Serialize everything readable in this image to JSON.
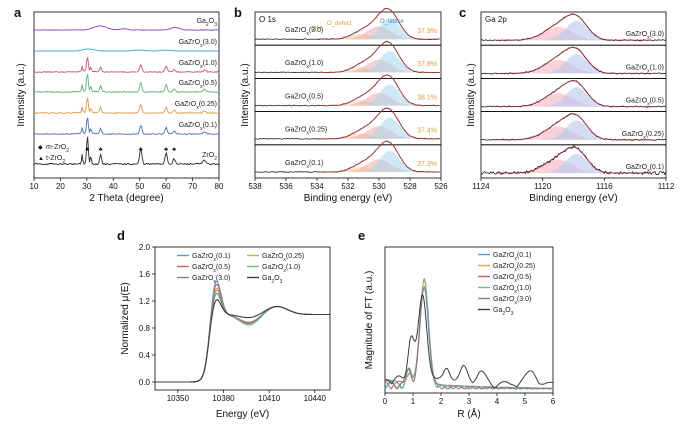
{
  "figure": {
    "panel_letters": [
      "a",
      "b",
      "c",
      "d",
      "e"
    ]
  },
  "chart_data": [
    {
      "panel": "a",
      "type": "line",
      "title": "",
      "xlabel": "2 Theta (degree)",
      "ylabel": "Intensity (a.u.)",
      "xlim": [
        10,
        80
      ],
      "xticks": [
        "10",
        "20",
        "30",
        "40",
        "50",
        "60",
        "70",
        "80"
      ],
      "series": [
        {
          "name": "Ga2O3",
          "color": "#8a3fc0"
        },
        {
          "name": "GaZrOx(3.0)",
          "color": "#35a8c8"
        },
        {
          "name": "GaZrOx(1.0)",
          "color": "#cc5566"
        },
        {
          "name": "GaZrOx(0.5)",
          "color": "#5fb07f"
        },
        {
          "name": "GaZrOx(0.25)",
          "color": "#e09a48"
        },
        {
          "name": "GaZrOx(0.1)",
          "color": "#4f6fa8"
        },
        {
          "name": "ZrO2",
          "color": "#2b2b2b"
        }
      ],
      "peaks_2theta": [
        30.2,
        35.2,
        50.4,
        60.0,
        63.0
      ],
      "legend": [
        "m-ZrO2",
        "t-ZrO2"
      ]
    },
    {
      "panel": "b",
      "type": "line",
      "title": "O 1s",
      "xlabel": "Binding energy (eV)",
      "ylabel": "Intensity (a.u.)",
      "xlim": [
        538,
        526
      ],
      "xticks": [
        "538",
        "536",
        "534",
        "532",
        "530",
        "528",
        "526"
      ],
      "annotations": [
        "OH",
        "O_defect",
        "O_lattice"
      ],
      "series": [
        {
          "name": "GaZrOx(3.0)",
          "defect_pct": "37.9%"
        },
        {
          "name": "GaZrOx(1.0)",
          "defect_pct": "37.8%"
        },
        {
          "name": "GaZrOx(0.5)",
          "defect_pct": "38.1%"
        },
        {
          "name": "GaZrOx(0.25)",
          "defect_pct": "37.4%"
        },
        {
          "name": "GaZrOx(0.1)",
          "defect_pct": "37.3%"
        }
      ]
    },
    {
      "panel": "c",
      "type": "line",
      "title": "Ga 2p",
      "xlabel": "Binding energy (eV)",
      "ylabel": "Intensity (a.u.)",
      "xlim": [
        1124,
        1112
      ],
      "xticks": [
        "1124",
        "1120",
        "1116",
        "1112"
      ],
      "series": [
        {
          "name": "GaZrOx(3.0)"
        },
        {
          "name": "GaZrOx(1.0)"
        },
        {
          "name": "GaZrOx(0.5)"
        },
        {
          "name": "GaZrOx(0.25)"
        },
        {
          "name": "GaZrOx(0.1)"
        }
      ]
    },
    {
      "panel": "d",
      "type": "line",
      "xlabel": "Energy (eV)",
      "ylabel": "Normalized μ(E)",
      "xlim": [
        10335,
        10450
      ],
      "ylim": [
        0.0,
        2.0
      ],
      "xticks": [
        10350,
        10380,
        10410,
        10440
      ],
      "yticks": [
        "0.0",
        "0.4",
        "0.8",
        "1.2",
        "1.6",
        "2.0"
      ],
      "series": [
        {
          "name": "GaZrOx(0.1)",
          "color": "#4ba3d4",
          "white_line": 1.55,
          "dip": 0.86
        },
        {
          "name": "GaZrOx(0.25)",
          "color": "#d9a94f",
          "white_line": 1.44,
          "dip": 0.85
        },
        {
          "name": "GaZrOx(0.5)",
          "color": "#d15b66",
          "white_line": 1.5,
          "dip": 0.87
        },
        {
          "name": "GaZrOx(1.0)",
          "color": "#66c089",
          "white_line": 1.41,
          "dip": 0.84
        },
        {
          "name": "GaZrOx(3.0)",
          "color": "#7f7f95",
          "white_line": 1.36,
          "dip": 0.88
        },
        {
          "name": "Ga2O3",
          "color": "#3b3b3b",
          "white_line": 1.26,
          "dip": 0.95
        }
      ]
    },
    {
      "panel": "e",
      "type": "line",
      "xlabel": "R (Å)",
      "ylabel": "Magnitude of FT (a.u.)",
      "xlim": [
        0,
        6
      ],
      "xticks": [
        "0",
        "1",
        "2",
        "3",
        "4",
        "5",
        "6"
      ],
      "series": [
        {
          "name": "GaZrOx(0.1)",
          "color": "#4ba3d4",
          "peak_R": 1.4
        },
        {
          "name": "GaZrOx(0.25)",
          "color": "#d9a94f",
          "peak_R": 1.4
        },
        {
          "name": "GaZrOx(0.5)",
          "color": "#d15b66",
          "peak_R": 1.4
        },
        {
          "name": "GaZrOx(1.0)",
          "color": "#66c089",
          "peak_R": 1.4
        },
        {
          "name": "GaZrOx(3.0)",
          "color": "#7f7f95",
          "peak_R": 1.4
        },
        {
          "name": "Ga2O3",
          "color": "#3b3b3b",
          "peak_R": 1.35
        }
      ]
    }
  ]
}
